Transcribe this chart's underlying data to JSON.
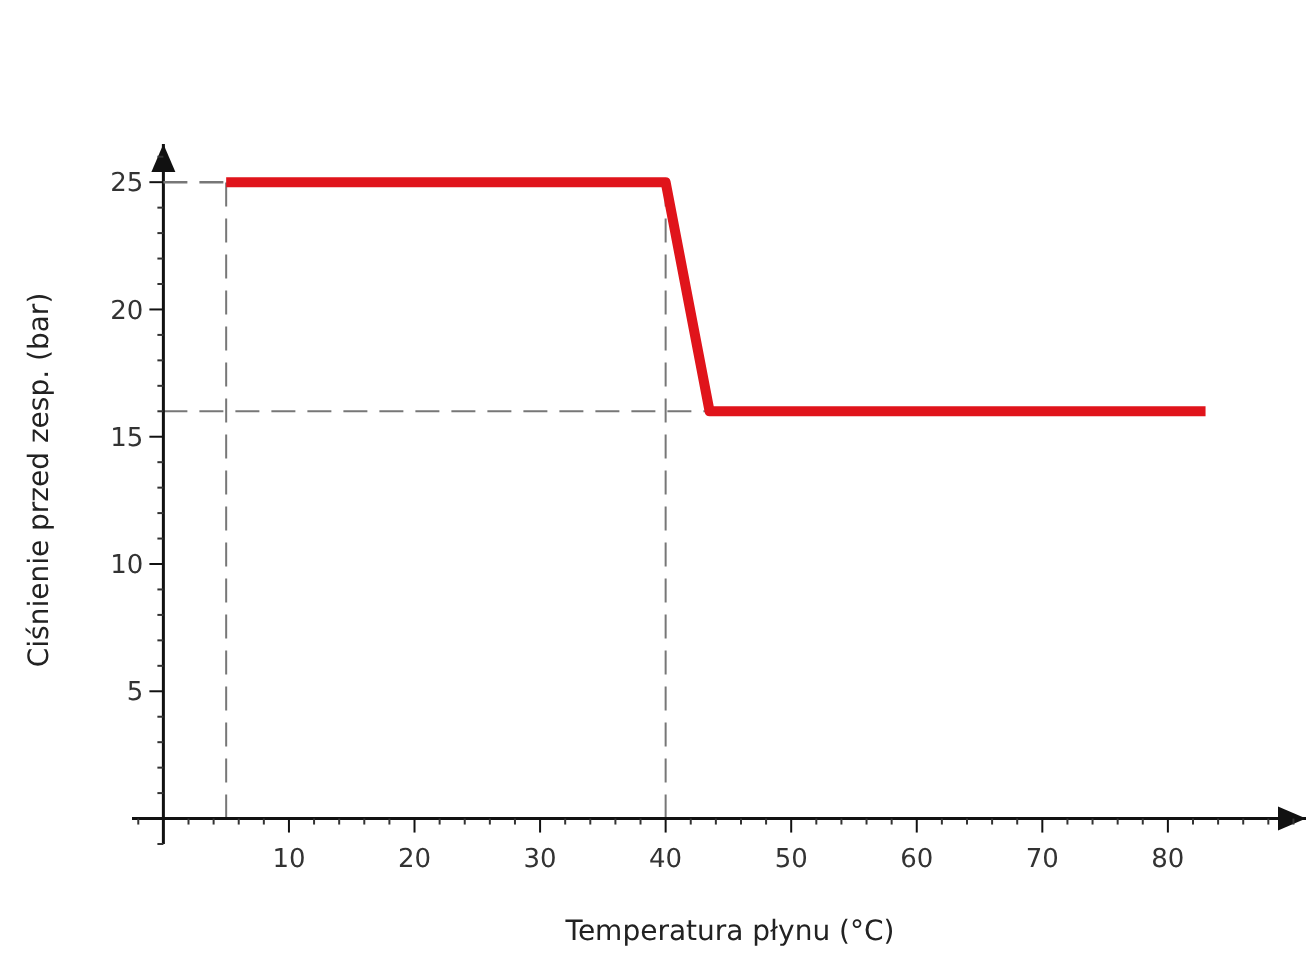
{
  "chart_data": {
    "type": "line",
    "xlabel": "Temperatura płynu (°C)",
    "ylabel": "Ciśnienie przed zesp. (bar)",
    "x": [
      5,
      40,
      43.5,
      83
    ],
    "series": [
      {
        "color": "#e0141b",
        "values": [
          25,
          25,
          16,
          16
        ]
      },
      {
        "type": "line",
        "x": [
          0,
          5
        ],
        "values": [
          25,
          25
        ],
        "color": "#777777",
        "line_style": "dashed"
      }
    ],
    "xlim": [
      -2.5,
      91
    ],
    "ylim": [
      -1,
      26.5
    ],
    "xticks": [
      10,
      20,
      30,
      40,
      50,
      60,
      70,
      80
    ],
    "yticks": [
      5,
      10,
      15,
      20,
      25
    ],
    "ref_lines": [
      {
        "axis": "x",
        "value": 5,
        "line_style": "dashed"
      },
      {
        "axis": "x",
        "value": 40,
        "line_style": "dashed"
      },
      {
        "axis": "y",
        "value": 16,
        "line_style": "dashed"
      }
    ],
    "marker": "none",
    "line_style": "solid"
  }
}
